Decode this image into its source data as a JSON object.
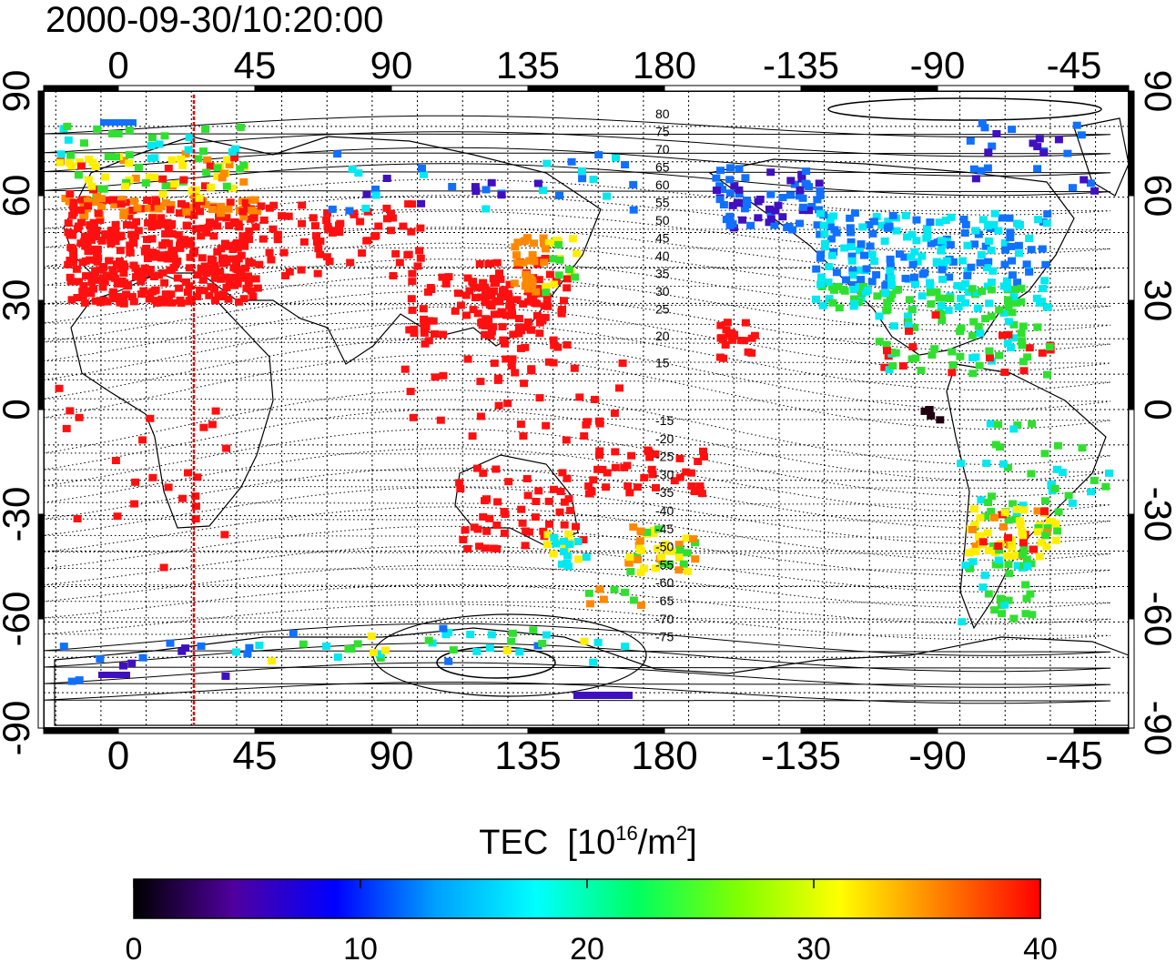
{
  "title": "2000-09-30/10:20:00",
  "map": {
    "lon_ticks_top": [
      "0",
      "45",
      "90",
      "135",
      "180",
      "-135",
      "-90",
      "-45"
    ],
    "lon_ticks_bottom": [
      "0",
      "45",
      "90",
      "135",
      "180",
      "-135",
      "-90",
      "-45"
    ],
    "lat_ticks_left": [
      "90",
      "60",
      "30",
      "0",
      "-30",
      "-60",
      "-90"
    ],
    "lat_ticks_right": [
      "90",
      "60",
      "30",
      "0",
      "-30",
      "-60",
      "-90"
    ],
    "contour_labels_north": [
      "80",
      "75",
      "70",
      "65",
      "60",
      "55",
      "50",
      "45",
      "40",
      "35",
      "30",
      "25",
      "20",
      "15"
    ],
    "contour_labels_south": [
      "-15",
      "-20",
      "-25",
      "-30",
      "-35",
      "-40",
      "-45",
      "-50",
      "-55",
      "-60",
      "-65",
      "-70",
      "-75"
    ],
    "terminator_color": "#e00000"
  },
  "colorbar": {
    "title": "TEC",
    "unit_prefix": "[10",
    "unit_exp": "16",
    "unit_mid": "/m",
    "unit_exp2": "2",
    "unit_suffix": "]",
    "ticks": [
      "0",
      "10",
      "20",
      "30",
      "40"
    ],
    "stops": [
      "#000000",
      "#5000a0",
      "#0000ff",
      "#00a0ff",
      "#00ffff",
      "#00ff60",
      "#80ff00",
      "#ffff00",
      "#ff8000",
      "#ff0000"
    ]
  },
  "colors": {
    "red": "#ff1010",
    "orange": "#ff8800",
    "yellow": "#ffee00",
    "green": "#30e030",
    "cyan": "#00e8f0",
    "blue": "#1070ff",
    "indigo": "#4010c0",
    "black": "#200010"
  }
}
